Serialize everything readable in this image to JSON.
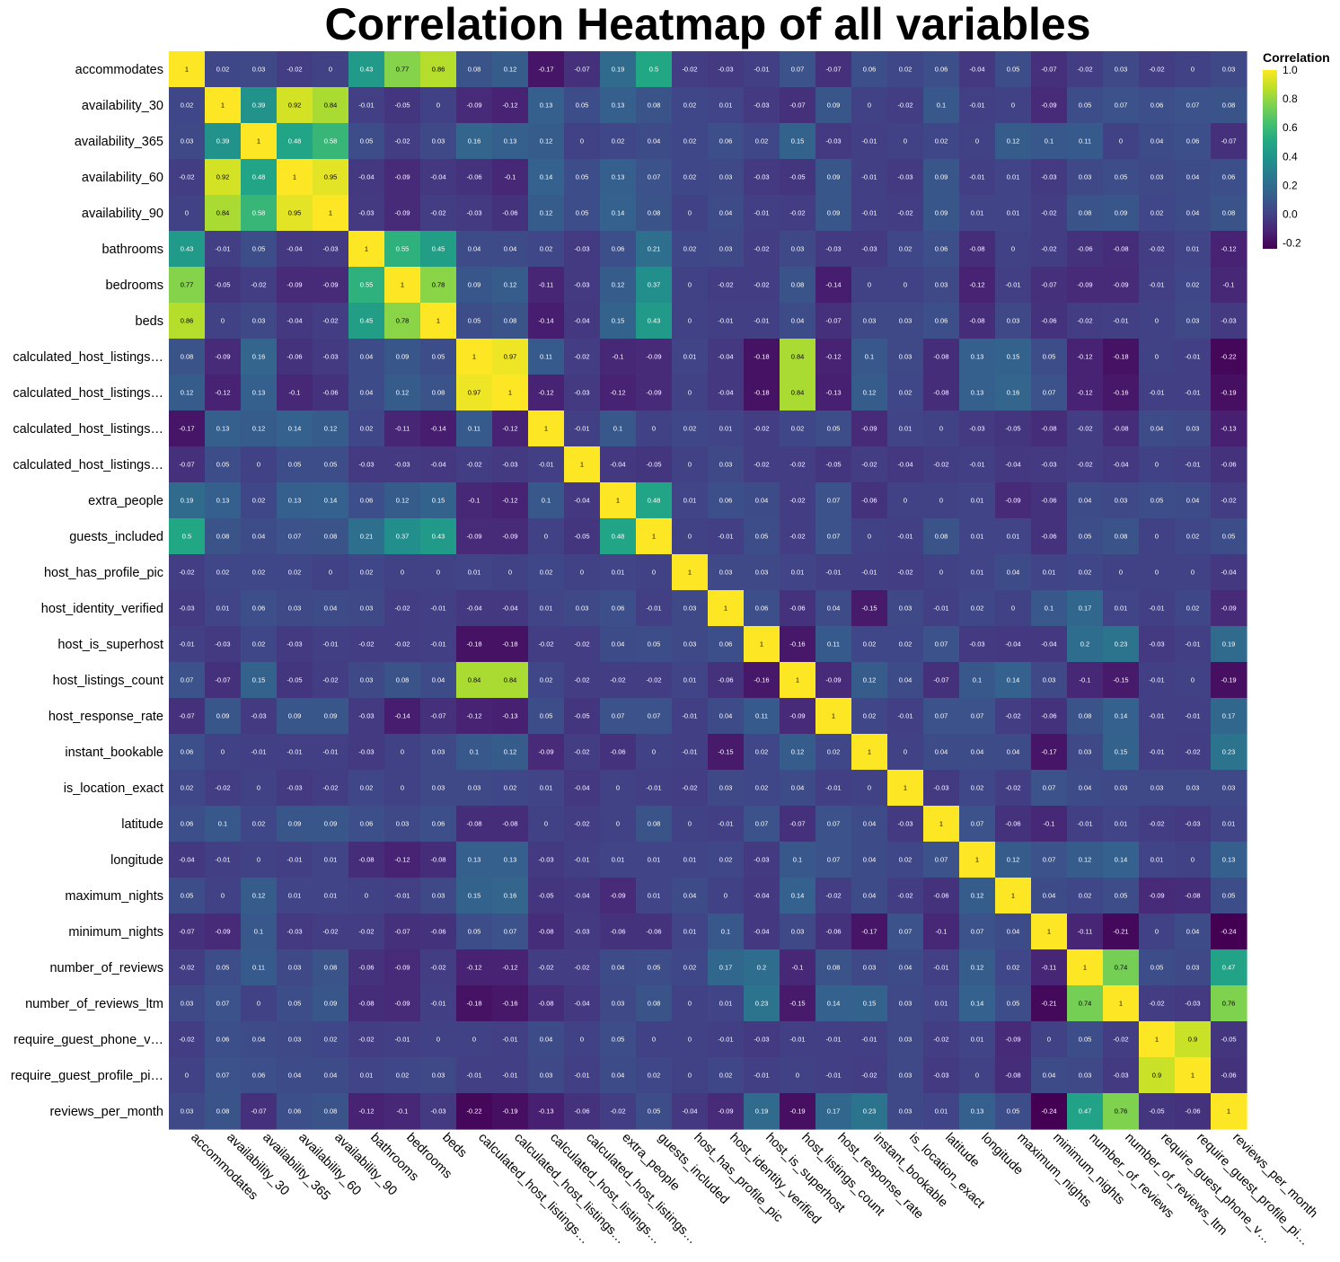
{
  "chart_data": {
    "type": "heatmap",
    "title": "Correlation Heatmap of all variables",
    "legend_title": "Correlation",
    "colorscale": "viridis",
    "legend_placement": "top-right",
    "grid": false,
    "color_range": [
      -0.24,
      1.0
    ],
    "legend_ticks": [
      "1.0",
      "0.8",
      "0.6",
      "0.4",
      "0.2",
      "0.0",
      "-0.2"
    ],
    "colors": {
      "min": "#440154",
      "mid": "#21918c",
      "max": "#fde725"
    },
    "variables": [
      "accommodates",
      "availability_30",
      "availability_365",
      "availability_60",
      "availability_90",
      "bathrooms",
      "bedrooms",
      "beds",
      "calculated_host_listings…",
      "calculated_host_listings…",
      "calculated_host_listings…",
      "calculated_host_listings…",
      "extra_people",
      "guests_included",
      "host_has_profile_pic",
      "host_identity_verified",
      "host_is_superhost",
      "host_listings_count",
      "host_response_rate",
      "instant_bookable",
      "is_location_exact",
      "latitude",
      "longitude",
      "maximum_nights",
      "minimum_nights",
      "number_of_reviews",
      "number_of_reviews_ltm",
      "require_guest_phone_v…",
      "require_guest_profile_pi…",
      "reviews_per_month"
    ],
    "values": [
      [
        1,
        0.02,
        0.03,
        -0.02,
        0,
        0.43,
        0.77,
        0.86,
        0.08,
        0.12,
        -0.17,
        -0.07,
        0.19,
        0.5,
        -0.02,
        -0.03,
        -0.01,
        0.07,
        -0.07,
        0.06,
        0.02,
        0.06,
        -0.04,
        0.05,
        -0.07,
        -0.02,
        0.03,
        -0.02,
        0,
        0.03
      ],
      [
        0.02,
        1,
        0.39,
        0.92,
        0.84,
        -0.01,
        -0.05,
        0,
        -0.09,
        -0.12,
        0.13,
        0.05,
        0.13,
        0.08,
        0.02,
        0.01,
        -0.03,
        -0.07,
        0.09,
        0,
        -0.02,
        0.1,
        -0.01,
        0,
        -0.09,
        0.05,
        0.07,
        0.06,
        0.07,
        0.08
      ],
      [
        0.03,
        0.39,
        1,
        0.48,
        0.58,
        0.05,
        -0.02,
        0.03,
        0.16,
        0.13,
        0.12,
        0,
        0.02,
        0.04,
        0.02,
        0.06,
        0.02,
        0.15,
        -0.03,
        -0.01,
        0,
        0.02,
        0,
        0.12,
        0.1,
        0.11,
        0,
        0.04,
        0.06,
        -0.07
      ],
      [
        -0.02,
        0.92,
        0.48,
        1,
        0.95,
        -0.04,
        -0.09,
        -0.04,
        -0.06,
        -0.1,
        0.14,
        0.05,
        0.13,
        0.07,
        0.02,
        0.03,
        -0.03,
        -0.05,
        0.09,
        -0.01,
        -0.03,
        0.09,
        -0.01,
        0.01,
        -0.03,
        0.03,
        0.05,
        0.03,
        0.04,
        0.06
      ],
      [
        0,
        0.84,
        0.58,
        0.95,
        1,
        -0.03,
        -0.09,
        -0.02,
        -0.03,
        -0.06,
        0.12,
        0.05,
        0.14,
        0.08,
        0,
        0.04,
        -0.01,
        -0.02,
        0.09,
        -0.01,
        -0.02,
        0.09,
        0.01,
        0.01,
        -0.02,
        0.08,
        0.09,
        0.02,
        0.04,
        0.08
      ],
      [
        0.43,
        -0.01,
        0.05,
        -0.04,
        -0.03,
        1,
        0.55,
        0.45,
        0.04,
        0.04,
        0.02,
        -0.03,
        0.06,
        0.21,
        0.02,
        0.03,
        -0.02,
        0.03,
        -0.03,
        -0.03,
        0.02,
        0.06,
        -0.08,
        0,
        -0.02,
        -0.06,
        -0.08,
        -0.02,
        0.01,
        -0.12
      ],
      [
        0.77,
        -0.05,
        -0.02,
        -0.09,
        -0.09,
        0.55,
        1,
        0.78,
        0.09,
        0.12,
        -0.11,
        -0.03,
        0.12,
        0.37,
        0,
        -0.02,
        -0.02,
        0.08,
        -0.14,
        0,
        0,
        0.03,
        -0.12,
        -0.01,
        -0.07,
        -0.09,
        -0.09,
        -0.01,
        0.02,
        -0.1
      ],
      [
        0.86,
        0,
        0.03,
        -0.04,
        -0.02,
        0.45,
        0.78,
        1,
        0.05,
        0.08,
        -0.14,
        -0.04,
        0.15,
        0.43,
        0,
        -0.01,
        -0.01,
        0.04,
        -0.07,
        0.03,
        0.03,
        0.06,
        -0.08,
        0.03,
        -0.06,
        -0.02,
        -0.01,
        0,
        0.03,
        -0.03
      ],
      [
        0.08,
        -0.09,
        0.16,
        -0.06,
        -0.03,
        0.04,
        0.09,
        0.05,
        1,
        0.97,
        0.11,
        -0.02,
        -0.1,
        -0.09,
        0.01,
        -0.04,
        -0.18,
        0.84,
        -0.12,
        0.1,
        0.03,
        -0.08,
        0.13,
        0.15,
        0.05,
        -0.12,
        -0.18,
        0,
        -0.01,
        -0.22
      ],
      [
        0.12,
        -0.12,
        0.13,
        -0.1,
        -0.06,
        0.04,
        0.12,
        0.08,
        0.97,
        1,
        -0.12,
        -0.03,
        -0.12,
        -0.09,
        0,
        -0.04,
        -0.18,
        0.84,
        -0.13,
        0.12,
        0.02,
        -0.08,
        0.13,
        0.16,
        0.07,
        -0.12,
        -0.16,
        -0.01,
        -0.01,
        -0.19
      ],
      [
        -0.17,
        0.13,
        0.12,
        0.14,
        0.12,
        0.02,
        -0.11,
        -0.14,
        0.11,
        -0.12,
        1,
        -0.01,
        0.1,
        0,
        0.02,
        0.01,
        -0.02,
        0.02,
        0.05,
        -0.09,
        0.01,
        0,
        -0.03,
        -0.05,
        -0.08,
        -0.02,
        -0.08,
        0.04,
        0.03,
        -0.13
      ],
      [
        -0.07,
        0.05,
        0,
        0.05,
        0.05,
        -0.03,
        -0.03,
        -0.04,
        -0.02,
        -0.03,
        -0.01,
        1,
        -0.04,
        -0.05,
        0,
        0.03,
        -0.02,
        -0.02,
        -0.05,
        -0.02,
        -0.04,
        -0.02,
        -0.01,
        -0.04,
        -0.03,
        -0.02,
        -0.04,
        0,
        -0.01,
        -0.06
      ],
      [
        0.19,
        0.13,
        0.02,
        0.13,
        0.14,
        0.06,
        0.12,
        0.15,
        -0.1,
        -0.12,
        0.1,
        -0.04,
        1,
        0.48,
        0.01,
        0.06,
        0.04,
        -0.02,
        0.07,
        -0.06,
        0,
        0,
        0.01,
        -0.09,
        -0.06,
        0.04,
        0.03,
        0.05,
        0.04,
        -0.02
      ],
      [
        0.5,
        0.08,
        0.04,
        0.07,
        0.08,
        0.21,
        0.37,
        0.43,
        -0.09,
        -0.09,
        0,
        -0.05,
        0.48,
        1,
        0,
        -0.01,
        0.05,
        -0.02,
        0.07,
        0,
        -0.01,
        0.08,
        0.01,
        0.01,
        -0.06,
        0.05,
        0.08,
        0,
        0.02,
        0.05
      ],
      [
        -0.02,
        0.02,
        0.02,
        0.02,
        0,
        0.02,
        0,
        0,
        0.01,
        0,
        0.02,
        0,
        0.01,
        0,
        1,
        0.03,
        0.03,
        0.01,
        -0.01,
        -0.01,
        -0.02,
        0,
        0.01,
        0.04,
        0.01,
        0.02,
        0,
        0,
        0,
        -0.04
      ],
      [
        -0.03,
        0.01,
        0.06,
        0.03,
        0.04,
        0.03,
        -0.02,
        -0.01,
        -0.04,
        -0.04,
        0.01,
        0.03,
        0.06,
        -0.01,
        0.03,
        1,
        0.06,
        -0.06,
        0.04,
        -0.15,
        0.03,
        -0.01,
        0.02,
        0,
        0.1,
        0.17,
        0.01,
        -0.01,
        0.02,
        -0.09
      ],
      [
        -0.01,
        -0.03,
        0.02,
        -0.03,
        -0.01,
        -0.02,
        -0.02,
        -0.01,
        -0.18,
        -0.18,
        -0.02,
        -0.02,
        0.04,
        0.05,
        0.03,
        0.06,
        1,
        -0.16,
        0.11,
        0.02,
        0.02,
        0.07,
        -0.03,
        -0.04,
        -0.04,
        0.2,
        0.23,
        -0.03,
        -0.01,
        0.19
      ],
      [
        0.07,
        -0.07,
        0.15,
        -0.05,
        -0.02,
        0.03,
        0.08,
        0.04,
        0.84,
        0.84,
        0.02,
        -0.02,
        -0.02,
        -0.02,
        0.01,
        -0.06,
        -0.16,
        1,
        -0.09,
        0.12,
        0.04,
        -0.07,
        0.1,
        0.14,
        0.03,
        -0.1,
        -0.15,
        -0.01,
        0,
        -0.19
      ],
      [
        -0.07,
        0.09,
        -0.03,
        0.09,
        0.09,
        -0.03,
        -0.14,
        -0.07,
        -0.12,
        -0.13,
        0.05,
        -0.05,
        0.07,
        0.07,
        -0.01,
        0.04,
        0.11,
        -0.09,
        1,
        0.02,
        -0.01,
        0.07,
        0.07,
        -0.02,
        -0.06,
        0.08,
        0.14,
        -0.01,
        -0.01,
        0.17
      ],
      [
        0.06,
        0,
        -0.01,
        -0.01,
        -0.01,
        -0.03,
        0,
        0.03,
        0.1,
        0.12,
        -0.09,
        -0.02,
        -0.06,
        0,
        -0.01,
        -0.15,
        0.02,
        0.12,
        0.02,
        1,
        0,
        0.04,
        0.04,
        0.04,
        -0.17,
        0.03,
        0.15,
        -0.01,
        -0.02,
        0.23
      ],
      [
        0.02,
        -0.02,
        0,
        -0.03,
        -0.02,
        0.02,
        0,
        0.03,
        0.03,
        0.02,
        0.01,
        -0.04,
        0,
        -0.01,
        -0.02,
        0.03,
        0.02,
        0.04,
        -0.01,
        0,
        1,
        -0.03,
        0.02,
        -0.02,
        0.07,
        0.04,
        0.03,
        0.03,
        0.03,
        0.03
      ],
      [
        0.06,
        0.1,
        0.02,
        0.09,
        0.09,
        0.06,
        0.03,
        0.06,
        -0.08,
        -0.08,
        0,
        -0.02,
        0,
        0.08,
        0,
        -0.01,
        0.07,
        -0.07,
        0.07,
        0.04,
        -0.03,
        1,
        0.07,
        -0.06,
        -0.1,
        -0.01,
        0.01,
        -0.02,
        -0.03,
        0.01
      ],
      [
        -0.04,
        -0.01,
        0,
        -0.01,
        0.01,
        -0.08,
        -0.12,
        -0.08,
        0.13,
        0.13,
        -0.03,
        -0.01,
        0.01,
        0.01,
        0.01,
        0.02,
        -0.03,
        0.1,
        0.07,
        0.04,
        0.02,
        0.07,
        1,
        0.12,
        0.07,
        0.12,
        0.14,
        0.01,
        0,
        0.13
      ],
      [
        0.05,
        0,
        0.12,
        0.01,
        0.01,
        0,
        -0.01,
        0.03,
        0.15,
        0.16,
        -0.05,
        -0.04,
        -0.09,
        0.01,
        0.04,
        0,
        -0.04,
        0.14,
        -0.02,
        0.04,
        -0.02,
        -0.06,
        0.12,
        1,
        0.04,
        0.02,
        0.05,
        -0.09,
        -0.08,
        0.05
      ],
      [
        -0.07,
        -0.09,
        0.1,
        -0.03,
        -0.02,
        -0.02,
        -0.07,
        -0.06,
        0.05,
        0.07,
        -0.08,
        -0.03,
        -0.06,
        -0.06,
        0.01,
        0.1,
        -0.04,
        0.03,
        -0.06,
        -0.17,
        0.07,
        -0.1,
        0.07,
        0.04,
        1,
        -0.11,
        -0.21,
        0,
        0.04,
        -0.24
      ],
      [
        -0.02,
        0.05,
        0.11,
        0.03,
        0.08,
        -0.06,
        -0.09,
        -0.02,
        -0.12,
        -0.12,
        -0.02,
        -0.02,
        0.04,
        0.05,
        0.02,
        0.17,
        0.2,
        -0.1,
        0.08,
        0.03,
        0.04,
        -0.01,
        0.12,
        0.02,
        -0.11,
        1,
        0.74,
        0.05,
        0.03,
        0.47
      ],
      [
        0.03,
        0.07,
        0,
        0.05,
        0.09,
        -0.08,
        -0.09,
        -0.01,
        -0.18,
        -0.16,
        -0.08,
        -0.04,
        0.03,
        0.08,
        0,
        0.01,
        0.23,
        -0.15,
        0.14,
        0.15,
        0.03,
        0.01,
        0.14,
        0.05,
        -0.21,
        0.74,
        1,
        -0.02,
        -0.03,
        0.76
      ],
      [
        -0.02,
        0.06,
        0.04,
        0.03,
        0.02,
        -0.02,
        -0.01,
        0,
        0,
        -0.01,
        0.04,
        0,
        0.05,
        0,
        0,
        -0.01,
        -0.03,
        -0.01,
        -0.01,
        -0.01,
        0.03,
        -0.02,
        0.01,
        -0.09,
        0,
        0.05,
        -0.02,
        1,
        0.9,
        -0.05
      ],
      [
        0,
        0.07,
        0.06,
        0.04,
        0.04,
        0.01,
        0.02,
        0.03,
        -0.01,
        -0.01,
        0.03,
        -0.01,
        0.04,
        0.02,
        0,
        0.02,
        -0.01,
        0,
        -0.01,
        -0.02,
        0.03,
        -0.03,
        0,
        -0.08,
        0.04,
        0.03,
        -0.03,
        0.9,
        1,
        -0.06
      ],
      [
        0.03,
        0.08,
        -0.07,
        0.06,
        0.08,
        -0.12,
        -0.1,
        -0.03,
        -0.22,
        -0.19,
        -0.13,
        -0.06,
        -0.02,
        0.05,
        -0.04,
        -0.09,
        0.19,
        -0.19,
        0.17,
        0.23,
        0.03,
        0.01,
        0.13,
        0.05,
        -0.24,
        0.47,
        0.76,
        -0.05,
        -0.06,
        1
      ]
    ]
  }
}
